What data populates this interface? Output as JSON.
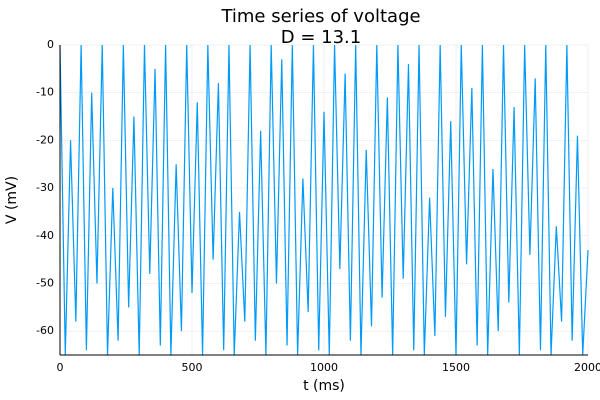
{
  "chart_data": {
    "type": "line",
    "title": "Time series of voltage",
    "subtitle": "D = 13.1",
    "x_label": "t (ms)",
    "y_label": "V (mV)",
    "x": [
      0,
      20,
      40,
      60,
      80,
      100,
      120,
      140,
      160,
      180,
      200,
      220,
      240,
      260,
      280,
      300,
      320,
      340,
      360,
      380,
      400,
      420,
      440,
      460,
      480,
      500,
      520,
      540,
      560,
      580,
      600,
      620,
      640,
      660,
      680,
      700,
      720,
      740,
      760,
      780,
      800,
      820,
      840,
      860,
      880,
      900,
      920,
      940,
      960,
      980,
      1000,
      1020,
      1040,
      1060,
      1080,
      1100,
      1120,
      1140,
      1160,
      1180,
      1200,
      1220,
      1240,
      1260,
      1280,
      1300,
      1320,
      1340,
      1360,
      1380,
      1400,
      1420,
      1440,
      1460,
      1480,
      1500,
      1520,
      1540,
      1560,
      1580,
      1600,
      1620,
      1640,
      1660,
      1680,
      1700,
      1720,
      1740,
      1760,
      1780,
      1800,
      1820,
      1840,
      1860,
      1880,
      1900,
      1920,
      1940,
      1960,
      1980,
      2000
    ],
    "series": [
      {
        "color": "#009af9",
        "values": [
          0,
          -65,
          -20,
          -58,
          0,
          -64,
          -10,
          -50,
          0,
          -65,
          -30,
          -62,
          0,
          -55,
          -15,
          -65,
          0,
          -48,
          -5,
          -63,
          0,
          -65,
          -25,
          -60,
          0,
          -52,
          -12,
          -65,
          0,
          -45,
          -8,
          -64,
          0,
          -65,
          -35,
          -58,
          0,
          -62,
          -18,
          -65,
          0,
          -50,
          -3,
          -63,
          0,
          -65,
          -28,
          -56,
          0,
          -64,
          -14,
          -65,
          0,
          -47,
          -6,
          -62,
          0,
          -65,
          -22,
          -59,
          0,
          -53,
          -11,
          -65,
          0,
          -49,
          -4,
          -64,
          0,
          -65,
          -32,
          -61,
          0,
          -57,
          -16,
          -65,
          0,
          -46,
          -9,
          -63,
          0,
          -65,
          -26,
          -60,
          0,
          -54,
          -13,
          -65,
          0,
          -44,
          -7,
          -64,
          0,
          -65,
          -38,
          -58,
          0,
          -62,
          -19,
          -65,
          -43
        ]
      }
    ],
    "xlim": [
      0,
      2000
    ],
    "ylim": [
      -65,
      0
    ],
    "xticks": [
      0,
      500,
      1000,
      1500,
      2000
    ],
    "yticks": [
      -60,
      -50,
      -40,
      -30,
      -20,
      -10,
      0
    ],
    "grid": true
  }
}
